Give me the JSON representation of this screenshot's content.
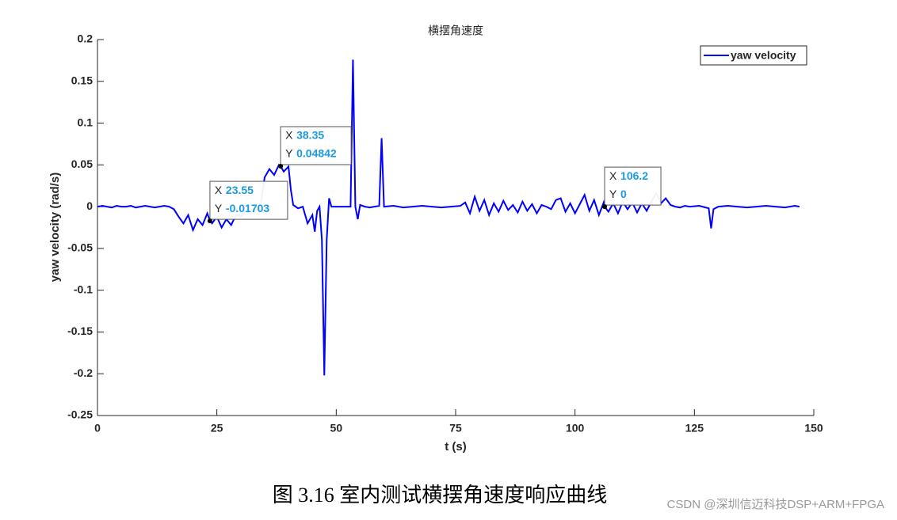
{
  "chart_data": {
    "type": "line",
    "title": "横摆角速度",
    "xlabel": "t (s)",
    "ylabel": "yaw velocity (rad/s)",
    "x": [
      0,
      1,
      2,
      3,
      4,
      5,
      6,
      7,
      8,
      9,
      10,
      11,
      12,
      13,
      14,
      15,
      16,
      17,
      18,
      19,
      20,
      21,
      22,
      23,
      23.55,
      24,
      25,
      26,
      27,
      28,
      29,
      30,
      31,
      32,
      33,
      34,
      35,
      36,
      37,
      38,
      38.35,
      39,
      40,
      40.5,
      41,
      42,
      43,
      44,
      45,
      45.5,
      46,
      46.5,
      47,
      47.5,
      48,
      48.5,
      49,
      50,
      51,
      52,
      53,
      53.5,
      54,
      54.5,
      55,
      56,
      57,
      58,
      59,
      59.5,
      60,
      62,
      64,
      66,
      68,
      70,
      72,
      74,
      76,
      77,
      78,
      79,
      80,
      81,
      82,
      83,
      84,
      85,
      86,
      87,
      88,
      89,
      90,
      91,
      92,
      93,
      94,
      95,
      96,
      97,
      98,
      99,
      100,
      101,
      102,
      103,
      104,
      105,
      106,
      106.2,
      107,
      108,
      109,
      110,
      111,
      112,
      113,
      114,
      115,
      116,
      117,
      118,
      119,
      120,
      121,
      122,
      123,
      124,
      126,
      128,
      128.5,
      129,
      130,
      132,
      134,
      136,
      138,
      140,
      142,
      144,
      146,
      147
    ],
    "series": [
      {
        "name": "yaw velocity",
        "color": "#0000ff",
        "values": [
          0,
          0.001,
          0,
          -0.001,
          0.001,
          0,
          0,
          0.001,
          -0.001,
          0,
          0.001,
          0,
          -0.001,
          0,
          0.001,
          0,
          -0.003,
          -0.012,
          -0.02,
          -0.01,
          -0.028,
          -0.015,
          -0.022,
          -0.008,
          -0.01703,
          -0.02,
          -0.012,
          -0.025,
          -0.015,
          -0.022,
          -0.01,
          -0.012,
          -0.005,
          -0.008,
          -0.003,
          -0.005,
          0.035,
          0.045,
          0.038,
          0.05,
          0.04842,
          0.042,
          0.048,
          0.02,
          0.002,
          -0.002,
          0,
          -0.02,
          -0.01,
          -0.03,
          -0.005,
          0,
          -0.04,
          -0.202,
          -0.04,
          0.01,
          0,
          0,
          0,
          0,
          0,
          0.176,
          0,
          -0.015,
          0.002,
          0,
          -0.001,
          0,
          0.001,
          0.082,
          0,
          0.001,
          -0.001,
          0,
          0.001,
          0,
          -0.001,
          0,
          0.001,
          0.005,
          -0.008,
          0.012,
          -0.005,
          0.008,
          -0.01,
          0.004,
          -0.006,
          0.007,
          -0.004,
          0.002,
          -0.007,
          0.006,
          -0.005,
          0.003,
          -0.008,
          0.002,
          0,
          -0.003,
          0.008,
          0.01,
          -0.006,
          0.004,
          -0.008,
          0.003,
          0.014,
          -0.005,
          0.008,
          -0.01,
          0.005,
          0,
          -0.006,
          0.004,
          -0.008,
          0.006,
          -0.003,
          0.005,
          -0.007,
          0.004,
          -0.005,
          0.006,
          0.016,
          0.004,
          0.01,
          0.002,
          0,
          -0.001,
          0.001,
          0,
          0.001,
          -0.002,
          -0.026,
          -0.003,
          0,
          0.001,
          0,
          -0.001,
          0,
          0.001,
          0,
          -0.001,
          0.001,
          0
        ]
      }
    ],
    "xlim": [
      0,
      150
    ],
    "ylim": [
      -0.25,
      0.2
    ],
    "xticks": [
      0,
      25,
      50,
      75,
      100,
      125,
      150
    ],
    "yticks": [
      -0.25,
      -0.2,
      -0.15,
      -0.1,
      -0.05,
      0,
      0.05,
      0.1,
      0.15,
      0.2
    ],
    "legend": "upper right",
    "datatips": [
      {
        "x_label": "X",
        "x": 23.55,
        "y_label": "Y",
        "y": -0.01703
      },
      {
        "x_label": "X",
        "x": 38.35,
        "y_label": "Y",
        "y": 0.04842
      },
      {
        "x_label": "X",
        "x": 106.2,
        "y_label": "Y",
        "y": 0
      }
    ]
  },
  "caption": "图 3.16  室内测试横摆角速度响应曲线",
  "watermark": "CSDN @深圳信迈科技DSP+ARM+FPGA"
}
